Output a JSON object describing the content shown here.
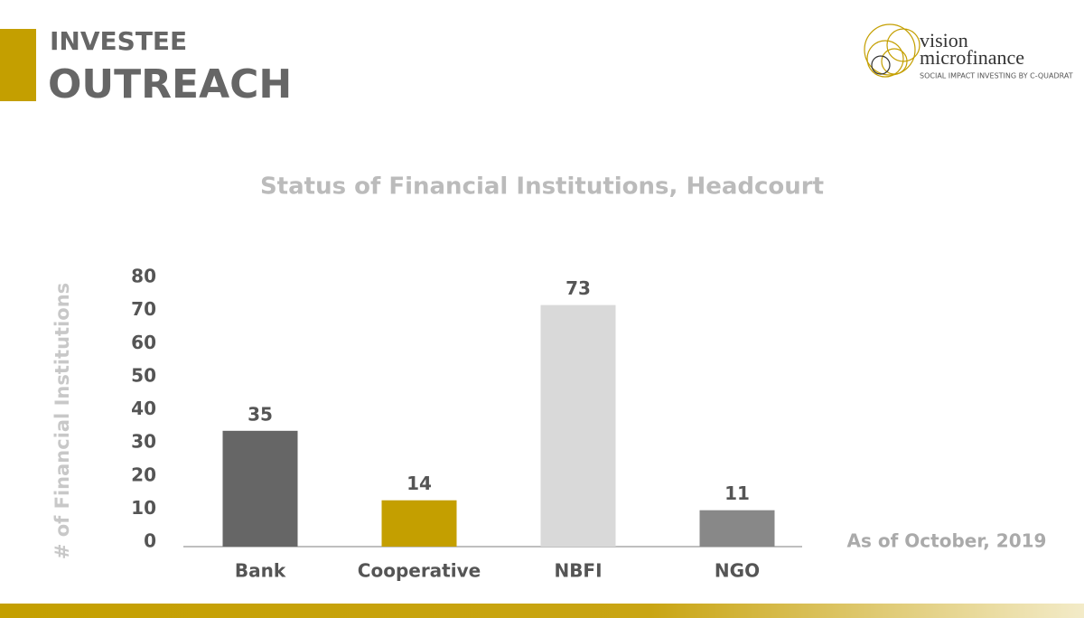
{
  "header": {
    "line1": "INVESTEE",
    "line2": "OUTREACH"
  },
  "logo": {
    "name1": "vision",
    "name2": "microfinance",
    "tagline": "SOCIAL IMPACT INVESTING BY C-QUADRAT"
  },
  "chart_data": {
    "type": "bar",
    "title": "Status of Financial Institutions, Headcourt",
    "y_label": "# of Financial Institutions",
    "categories": [
      "Bank",
      "Cooperative",
      "NBFI",
      "NGO"
    ],
    "values": [
      35,
      14,
      73,
      11
    ],
    "colors": [
      "#666666",
      "#c49f00",
      "#d9d9d9",
      "#888888"
    ],
    "ylim": [
      0,
      80
    ],
    "yticks": [
      0,
      10,
      20,
      30,
      40,
      50,
      60,
      70,
      80
    ],
    "grid": false,
    "note": "As of October, 2019"
  }
}
